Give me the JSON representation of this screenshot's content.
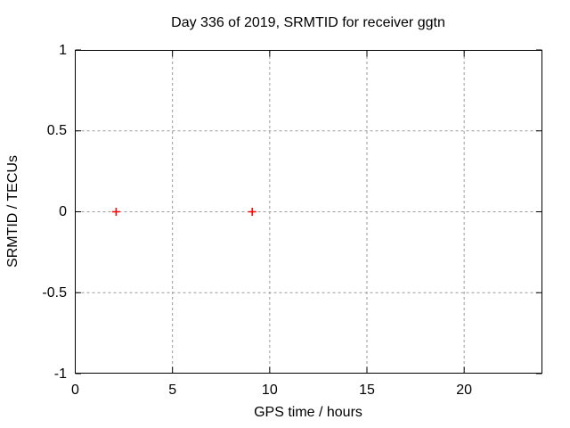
{
  "window": {
    "background": "#ffffff"
  },
  "chart_data": {
    "type": "scatter",
    "title": "Day 336 of 2019, SRMTID for receiver ggtn",
    "xlabel": "GPS time / hours",
    "ylabel": "SRMTID / TECUs",
    "xlim": [
      0,
      24
    ],
    "ylim": [
      -1,
      1
    ],
    "xticks": [
      0,
      5,
      10,
      15,
      20
    ],
    "xtick_labels": [
      "0",
      "5",
      "10",
      "15",
      "20"
    ],
    "yticks": [
      -1,
      -0.5,
      0,
      0.5,
      1
    ],
    "ytick_labels": [
      "-1",
      "-0.5",
      "0",
      "0.5",
      "1"
    ],
    "grid": true,
    "grid_style": "dotted",
    "legend": "none",
    "colors": {
      "axis": "#000000",
      "grid": "#9a9a9a",
      "background": "#ffffff"
    },
    "series": [
      {
        "name": "SRMTID",
        "marker": "plus",
        "color": "#ff0000",
        "points": [
          {
            "x": 2.1,
            "y": 0.0
          },
          {
            "x": 9.1,
            "y": 0.0
          }
        ]
      }
    ]
  }
}
